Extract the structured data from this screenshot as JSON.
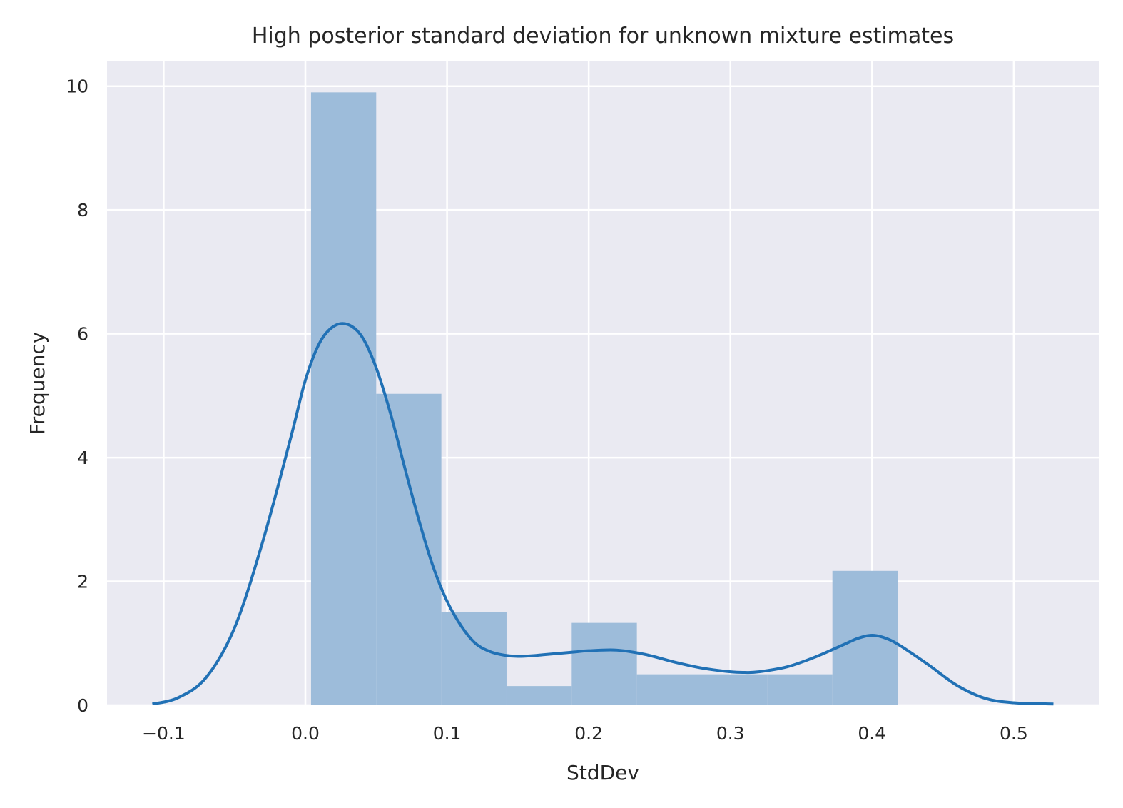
{
  "chart_data": {
    "type": "bar",
    "title": "High posterior standard deviation for unknown mixture estimates",
    "xlabel": "StdDev",
    "ylabel": "Frequency",
    "xlim": [
      -0.14,
      0.56
    ],
    "ylim": [
      0,
      10.4
    ],
    "xticks": [
      -0.1,
      0.0,
      0.1,
      0.2,
      0.3,
      0.4,
      0.5
    ],
    "xtick_labels": [
      "−0.1",
      "0.0",
      "0.1",
      "0.2",
      "0.3",
      "0.4",
      "0.5"
    ],
    "yticks": [
      0,
      2,
      4,
      6,
      8,
      10
    ],
    "ytick_labels": [
      "0",
      "2",
      "4",
      "6",
      "8",
      "10"
    ],
    "grid": true,
    "histogram": {
      "bin_edges": [
        0.004,
        0.05,
        0.096,
        0.142,
        0.188,
        0.234,
        0.28,
        0.326,
        0.372,
        0.418
      ],
      "values": [
        9.9,
        5.03,
        1.51,
        0.31,
        1.33,
        0.5,
        0.5,
        0.5,
        2.17
      ],
      "color": "#9dbcda"
    },
    "kde": {
      "color": "#2171b5",
      "x": [
        -0.108,
        -0.09,
        -0.07,
        -0.05,
        -0.03,
        -0.01,
        0.0,
        0.01,
        0.02,
        0.03,
        0.04,
        0.05,
        0.06,
        0.07,
        0.08,
        0.09,
        0.1,
        0.11,
        0.12,
        0.13,
        0.14,
        0.15,
        0.16,
        0.17,
        0.18,
        0.19,
        0.2,
        0.22,
        0.24,
        0.26,
        0.28,
        0.3,
        0.31,
        0.32,
        0.34,
        0.36,
        0.38,
        0.39,
        0.4,
        0.41,
        0.42,
        0.44,
        0.46,
        0.48,
        0.5,
        0.528
      ],
      "y": [
        0.02,
        0.12,
        0.45,
        1.25,
        2.65,
        4.35,
        5.25,
        5.85,
        6.12,
        6.15,
        5.95,
        5.45,
        4.72,
        3.85,
        3.0,
        2.25,
        1.68,
        1.28,
        1.0,
        0.87,
        0.81,
        0.79,
        0.8,
        0.82,
        0.84,
        0.86,
        0.88,
        0.89,
        0.82,
        0.7,
        0.6,
        0.54,
        0.53,
        0.54,
        0.62,
        0.78,
        0.98,
        1.08,
        1.13,
        1.08,
        0.96,
        0.65,
        0.32,
        0.11,
        0.04,
        0.02
      ]
    }
  }
}
